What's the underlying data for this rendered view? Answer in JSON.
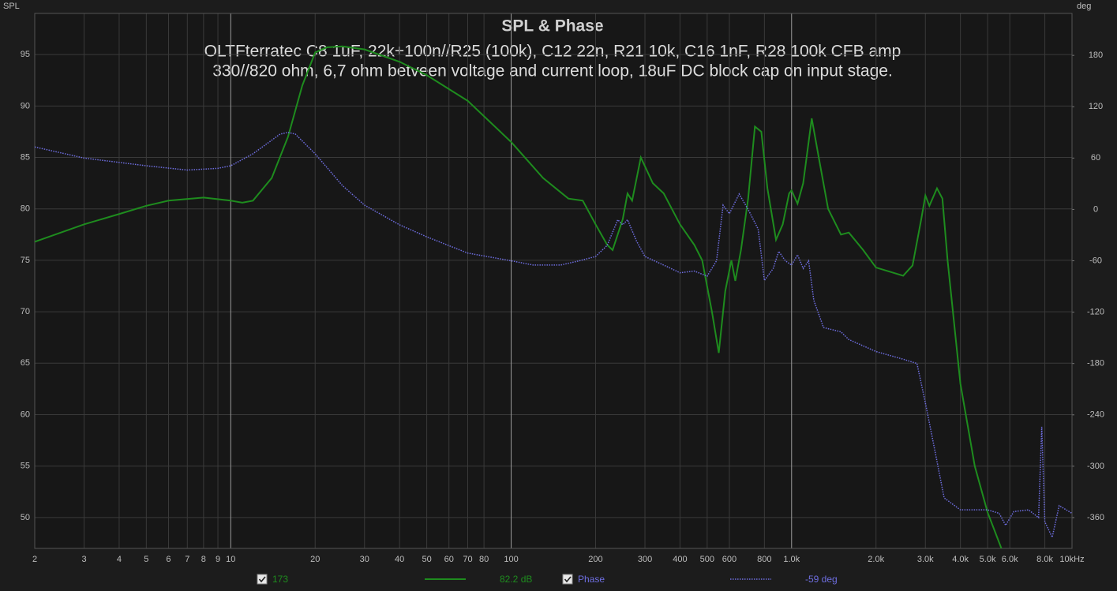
{
  "chart_data": {
    "type": "line",
    "title": "SPL & Phase",
    "subtitle": [
      "OLTFterratec C8 1uF, 22k+100n//R25 (100k), C12 22n, R21 10k, C16 1nF, R28 100k CFB amp",
      "330//820 ohm, 6,7 ohm betveen voltage and current loop, 18uF DC block cap on input stage."
    ],
    "y_label": "SPL",
    "y2_label": "deg",
    "xscale": "log",
    "grid": true,
    "xlim": [
      2,
      10000
    ],
    "xticks": [
      2,
      3,
      4,
      5,
      6,
      7,
      8,
      9,
      10,
      20,
      30,
      40,
      50,
      60,
      70,
      80,
      100,
      200,
      300,
      400,
      500,
      600,
      800,
      {
        "value": 1000,
        "label": "1.0k"
      },
      {
        "value": 2000,
        "label": "2.0k"
      },
      {
        "value": 3000,
        "label": "3.0k"
      },
      {
        "value": 4000,
        "label": "4.0k"
      },
      {
        "value": 5000,
        "label": "5.0k"
      },
      {
        "value": 6000,
        "label": "6.0k"
      },
      {
        "value": 8000,
        "label": "8.0k"
      },
      {
        "value": 10000,
        "label": "10kHz"
      }
    ],
    "ylim": [
      47,
      99
    ],
    "yticks": [
      50,
      55,
      60,
      65,
      70,
      75,
      80,
      85,
      90,
      95
    ],
    "y2lim": [
      -396,
      229
    ],
    "y2ticks": [
      -360,
      -300,
      -240,
      -180,
      -120,
      -60,
      0,
      60,
      120,
      180
    ],
    "series": [
      {
        "name": "173",
        "color": "#1e8c1e",
        "readout": "82.2 dB",
        "x": [
          2,
          3,
          4,
          5,
          6,
          8,
          10,
          11,
          12,
          14,
          16,
          18,
          20,
          22,
          25,
          30,
          40,
          50,
          70,
          100,
          130,
          160,
          180,
          200,
          220,
          230,
          250,
          260,
          270,
          290,
          320,
          350,
          400,
          450,
          480,
          520,
          550,
          580,
          610,
          630,
          660,
          700,
          740,
          780,
          820,
          880,
          930,
          980,
          1000,
          1050,
          1100,
          1180,
          1250,
          1350,
          1500,
          1600,
          1800,
          2000,
          2300,
          2500,
          2700,
          2900,
          3000,
          3100,
          3300,
          3450,
          3600,
          4000,
          4500,
          5000,
          5600
        ],
        "values": [
          76.8,
          78.5,
          79.5,
          80.3,
          80.8,
          81.1,
          80.8,
          80.6,
          80.8,
          83,
          87,
          92,
          95.2,
          95.7,
          95.8,
          95.5,
          94.3,
          93,
          90.5,
          86.5,
          83,
          81,
          80.8,
          78.5,
          76.5,
          76,
          79,
          81.5,
          80.8,
          85,
          82.5,
          81.5,
          78.5,
          76.5,
          75,
          70,
          66,
          72,
          75,
          73,
          76,
          81,
          88,
          87.5,
          82,
          77,
          78.5,
          81.5,
          81.8,
          80.5,
          82.5,
          88.8,
          85,
          80,
          77.5,
          77.7,
          76,
          74.3,
          73.8,
          73.5,
          74.5,
          79,
          81.3,
          80.3,
          82,
          81,
          75,
          63,
          55,
          50.5,
          47
        ]
      },
      {
        "name": "Phase",
        "color": "#6e6ee0",
        "axis": "y2",
        "dotted": true,
        "readout": "-59 deg",
        "x": [
          2,
          3,
          5,
          7,
          9,
          10,
          12,
          15,
          16,
          17,
          20,
          25,
          30,
          40,
          50,
          70,
          100,
          120,
          150,
          175,
          200,
          220,
          240,
          250,
          260,
          280,
          300,
          350,
          400,
          450,
          500,
          540,
          570,
          600,
          650,
          700,
          760,
          800,
          860,
          900,
          950,
          1000,
          1050,
          1100,
          1150,
          1200,
          1300,
          1500,
          1600,
          2000,
          2500,
          2800,
          3000,
          3200,
          3500,
          4000,
          5000,
          5500,
          5800,
          6200,
          7000,
          7600,
          7800,
          8000,
          8500,
          9000,
          10000
        ],
        "values": [
          73,
          60,
          51,
          46,
          48,
          51,
          65,
          88,
          90,
          88,
          65,
          28,
          5,
          -18,
          -32,
          -51,
          -60,
          -65,
          -65,
          -60,
          -55,
          -42,
          -12,
          -18,
          -12,
          -37,
          -55,
          -65,
          -74,
          -72,
          -78,
          -60,
          5,
          -5,
          18,
          0,
          -23,
          -83,
          -69,
          -49,
          -60,
          -65,
          -53,
          -69,
          -60,
          -106,
          -138,
          -143,
          -152,
          -166,
          -175,
          -180,
          -226,
          -272,
          -337,
          -351,
          -351,
          -355,
          -369,
          -353,
          -351,
          -360,
          -254,
          -365,
          -383,
          -346,
          -355
        ]
      }
    ]
  }
}
